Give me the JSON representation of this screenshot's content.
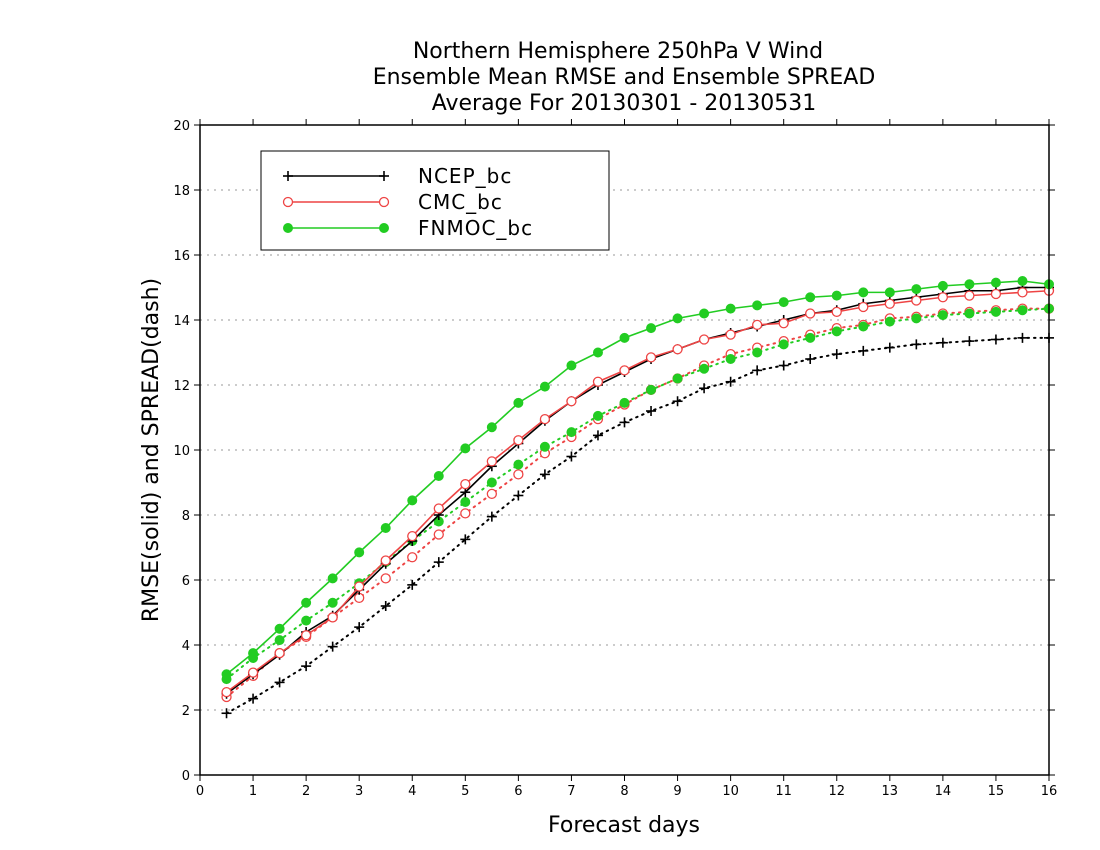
{
  "chart_data": {
    "type": "line",
    "title": [
      "Northern Hemisphere 250hPa V Wind",
      "Ensemble Mean RMSE and Ensemble SPREAD",
      "Average For 20130301 - 20130531"
    ],
    "xlabel": "Forecast days",
    "ylabel": "RMSE(solid) and SPREAD(dash)",
    "xlim": [
      0,
      16
    ],
    "ylim": [
      0,
      20
    ],
    "xticks": [
      "0",
      "1",
      "2",
      "3",
      "4",
      "5",
      "6",
      "7",
      "8",
      "9",
      "10",
      "11",
      "12",
      "13",
      "14",
      "15",
      "16"
    ],
    "yticks": [
      "0",
      "2",
      "4",
      "6",
      "8",
      "10",
      "12",
      "14",
      "16",
      "18",
      "20"
    ],
    "grid": "horizontal dotted",
    "legend_position": "top-left",
    "x": [
      0.5,
      1,
      1.5,
      2,
      2.5,
      3,
      3.5,
      4,
      4.5,
      5,
      5.5,
      6,
      6.5,
      7,
      7.5,
      8,
      8.5,
      9,
      9.5,
      10,
      10.5,
      11,
      11.5,
      12,
      12.5,
      13,
      13.5,
      14,
      14.5,
      15,
      15.5,
      16
    ],
    "series": [
      {
        "name": "NCEP_bc",
        "color": "#000000",
        "marker": "plus",
        "rmse": [
          2.5,
          3.1,
          3.7,
          4.4,
          4.9,
          5.7,
          6.5,
          7.2,
          8.0,
          8.7,
          9.5,
          10.2,
          10.9,
          11.5,
          12.0,
          12.4,
          12.8,
          13.1,
          13.4,
          13.6,
          13.8,
          14.0,
          14.2,
          14.3,
          14.5,
          14.6,
          14.7,
          14.8,
          14.9,
          14.9,
          15.0,
          15.0
        ],
        "spread": [
          1.9,
          2.35,
          2.85,
          3.35,
          3.95,
          4.55,
          5.2,
          5.85,
          6.55,
          7.25,
          7.95,
          8.6,
          9.25,
          9.8,
          10.45,
          10.85,
          11.2,
          11.5,
          11.9,
          12.1,
          12.45,
          12.6,
          12.8,
          12.95,
          13.05,
          13.15,
          13.25,
          13.3,
          13.35,
          13.4,
          13.45,
          13.45
        ]
      },
      {
        "name": "CMC_bc",
        "color": "#ee4444",
        "marker": "open-circle",
        "rmse": [
          2.55,
          3.15,
          3.75,
          4.3,
          4.85,
          5.8,
          6.6,
          7.35,
          8.2,
          8.95,
          9.65,
          10.3,
          10.95,
          11.5,
          12.1,
          12.45,
          12.85,
          13.1,
          13.4,
          13.55,
          13.85,
          13.9,
          14.2,
          14.25,
          14.4,
          14.5,
          14.6,
          14.7,
          14.75,
          14.8,
          14.85,
          14.9
        ],
        "spread": [
          2.4,
          3.05,
          3.75,
          4.25,
          4.85,
          5.45,
          6.05,
          6.7,
          7.4,
          8.05,
          8.65,
          9.25,
          9.9,
          10.4,
          10.95,
          11.4,
          11.85,
          12.2,
          12.6,
          12.95,
          13.15,
          13.35,
          13.55,
          13.75,
          13.85,
          14.05,
          14.1,
          14.2,
          14.25,
          14.3,
          14.35,
          14.35
        ]
      },
      {
        "name": "FNMOC_bc",
        "color": "#22cc22",
        "marker": "filled-circle",
        "rmse": [
          3.1,
          3.75,
          4.5,
          5.3,
          6.05,
          6.85,
          7.6,
          8.45,
          9.2,
          10.05,
          10.7,
          11.45,
          11.95,
          12.6,
          13.0,
          13.45,
          13.75,
          14.05,
          14.2,
          14.35,
          14.45,
          14.55,
          14.7,
          14.75,
          14.85,
          14.85,
          14.95,
          15.05,
          15.1,
          15.15,
          15.2,
          15.1
        ],
        "spread": [
          2.95,
          3.6,
          4.15,
          4.75,
          5.3,
          5.9,
          6.55,
          7.2,
          7.8,
          8.4,
          9.0,
          9.55,
          10.1,
          10.55,
          11.05,
          11.45,
          11.85,
          12.2,
          12.5,
          12.8,
          13.0,
          13.25,
          13.45,
          13.65,
          13.8,
          13.95,
          14.05,
          14.15,
          14.2,
          14.25,
          14.3,
          14.35
        ]
      }
    ]
  }
}
